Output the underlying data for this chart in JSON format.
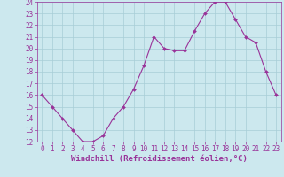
{
  "x": [
    0,
    1,
    2,
    3,
    4,
    5,
    6,
    7,
    8,
    9,
    10,
    11,
    12,
    13,
    14,
    15,
    16,
    17,
    18,
    19,
    20,
    21,
    22,
    23
  ],
  "y": [
    16,
    15,
    14,
    13,
    12,
    12,
    12.5,
    14,
    15,
    16.5,
    18.5,
    21,
    20,
    19.8,
    19.8,
    21.5,
    23,
    24,
    24,
    22.5,
    21,
    20.5,
    18,
    16
  ],
  "line_color": "#993399",
  "marker": "D",
  "marker_size": 2,
  "bg_color": "#cce8ee",
  "grid_color": "#a8cdd6",
  "xlabel": "Windchill (Refroidissement éolien,°C)",
  "xlabel_color": "#993399",
  "ylim": [
    12,
    24
  ],
  "xlim": [
    -0.5,
    23.5
  ],
  "yticks": [
    12,
    13,
    14,
    15,
    16,
    17,
    18,
    19,
    20,
    21,
    22,
    23,
    24
  ],
  "xticks": [
    0,
    1,
    2,
    3,
    4,
    5,
    6,
    7,
    8,
    9,
    10,
    11,
    12,
    13,
    14,
    15,
    16,
    17,
    18,
    19,
    20,
    21,
    22,
    23
  ],
  "tick_color": "#993399",
  "tick_fontsize": 5.5,
  "xlabel_fontsize": 6.5
}
